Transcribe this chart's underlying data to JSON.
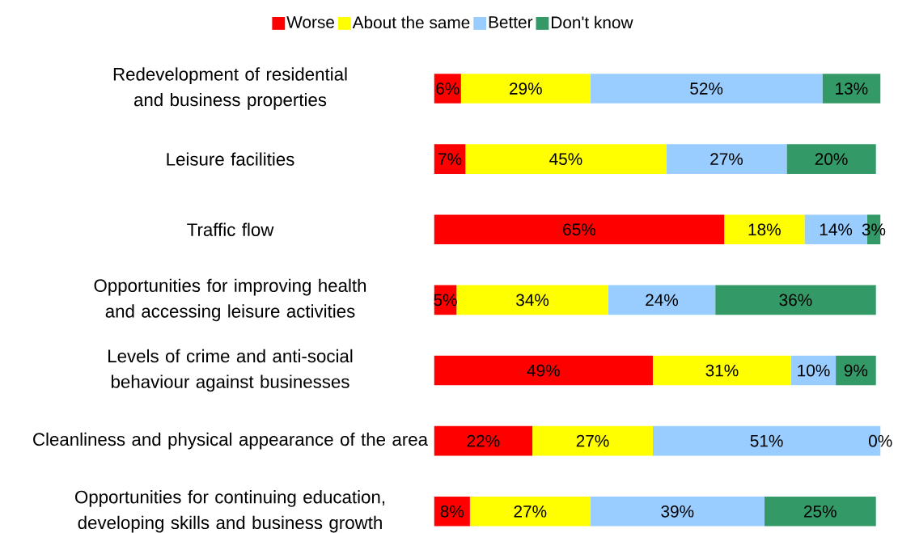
{
  "chart_data": {
    "type": "bar",
    "orientation": "horizontal",
    "stacked": true,
    "legend": "top",
    "categories": [
      "Redevelopment of residential and business properties",
      "Leisure facilities",
      "Traffic flow",
      "Opportunities for improving health and accessing leisure activities",
      "Levels of crime and anti-social behaviour against businesses",
      "Cleanliness and physical appearance of the area",
      "Opportunities for continuing education, developing skills and business growth"
    ],
    "series": [
      {
        "name": "Worse",
        "color": "#ff0000",
        "values": [
          6,
          7,
          65,
          5,
          49,
          22,
          8
        ],
        "value_labels": [
          "6%",
          "7%",
          "65%",
          "5%",
          "49%",
          "22%",
          "8%"
        ]
      },
      {
        "name": "About the same",
        "color": "#ffff00",
        "values": [
          29,
          45,
          18,
          34,
          31,
          27,
          27
        ],
        "value_labels": [
          "29%",
          "45%",
          "18%",
          "34%",
          "31%",
          "27%",
          "27%"
        ]
      },
      {
        "name": "Better",
        "color": "#99ccff",
        "values": [
          52,
          27,
          14,
          24,
          10,
          51,
          39
        ],
        "value_labels": [
          "52%",
          "27%",
          "14%",
          "24%",
          "10%",
          "51%",
          "39%"
        ]
      },
      {
        "name": "Don't know",
        "color": "#339966",
        "values": [
          13,
          20,
          3,
          36,
          9,
          0,
          25
        ],
        "value_labels": [
          "13%",
          "20%",
          "3%",
          "36%",
          "9%",
          "0%",
          "25%"
        ]
      }
    ]
  }
}
